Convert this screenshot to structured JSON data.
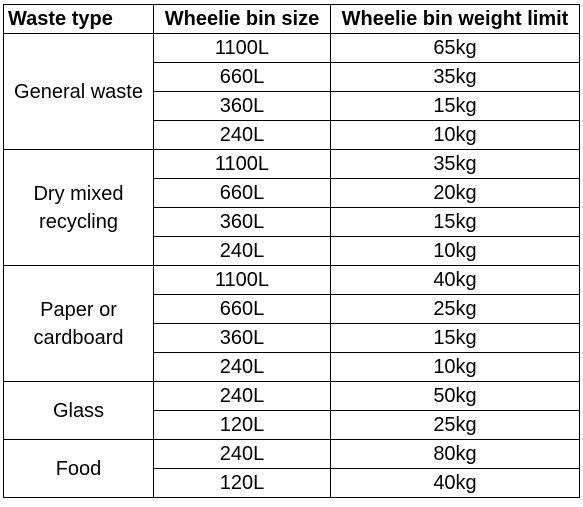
{
  "headers": {
    "waste_type": "Waste type",
    "bin_size": "Wheelie bin size",
    "weight_limit": "Wheelie bin weight limit"
  },
  "groups": [
    {
      "type": "General waste",
      "rows": [
        {
          "size": "1100L",
          "limit": "65kg"
        },
        {
          "size": "660L",
          "limit": "35kg"
        },
        {
          "size": "360L",
          "limit": "15kg"
        },
        {
          "size": "240L",
          "limit": "10kg"
        }
      ]
    },
    {
      "type": "Dry mixed recycling",
      "rows": [
        {
          "size": "1100L",
          "limit": "35kg"
        },
        {
          "size": "660L",
          "limit": "20kg"
        },
        {
          "size": "360L",
          "limit": "15kg"
        },
        {
          "size": "240L",
          "limit": "10kg"
        }
      ]
    },
    {
      "type": "Paper or cardboard",
      "rows": [
        {
          "size": "1100L",
          "limit": "40kg"
        },
        {
          "size": "660L",
          "limit": "25kg"
        },
        {
          "size": "360L",
          "limit": "15kg"
        },
        {
          "size": "240L",
          "limit": "10kg"
        }
      ]
    },
    {
      "type": "Glass",
      "rows": [
        {
          "size": "240L",
          "limit": "50kg"
        },
        {
          "size": "120L",
          "limit": "25kg"
        }
      ]
    },
    {
      "type": "Food",
      "rows": [
        {
          "size": "240L",
          "limit": "80kg"
        },
        {
          "size": "120L",
          "limit": "40kg"
        }
      ]
    }
  ]
}
